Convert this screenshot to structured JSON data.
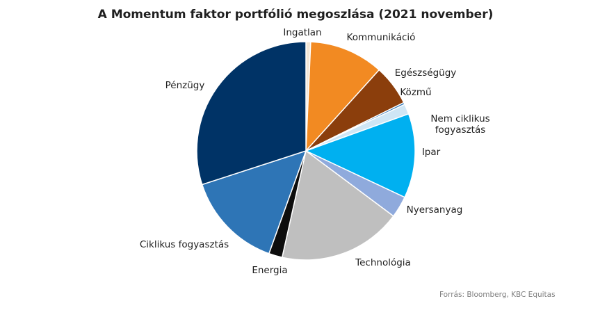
{
  "chart_data": {
    "type": "pie",
    "title": "A Momentum faktor portfólió megoszlása (2021 november)",
    "start_angle_deg": 0,
    "direction": "clockwise",
    "slices": [
      {
        "label": [
          "Ingatlan"
        ],
        "value": 0.7,
        "color": "#f2e6d6"
      },
      {
        "label": [
          "Kommunikáció"
        ],
        "value": 11.0,
        "color": "#f28a22"
      },
      {
        "label": [
          "Egészségügy"
        ],
        "value": 6.0,
        "color": "#8b3e0c"
      },
      {
        "label": [
          "Közmű"
        ],
        "value": 0.3,
        "color": "#2e75b6"
      },
      {
        "label": [
          "Nem ciklikus",
          "fogyasztás"
        ],
        "value": 1.5,
        "color": "#cfe6f5"
      },
      {
        "label": [
          "Ipar"
        ],
        "value": 12.5,
        "color": "#00b0f0"
      },
      {
        "label": [
          "Nyersanyag"
        ],
        "value": 3.2,
        "color": "#8faadc"
      },
      {
        "label": [
          "Technológia"
        ],
        "value": 18.3,
        "color": "#bfbfbf"
      },
      {
        "label": [
          "Energia"
        ],
        "value": 2.0,
        "color": "#0d0d0d"
      },
      {
        "label": [
          "Ciklikus fogyasztás"
        ],
        "value": 14.5,
        "color": "#2e75b6"
      },
      {
        "label": [
          "Pénzügy"
        ],
        "value": 30.0,
        "color": "#003366"
      }
    ]
  },
  "source": "Forrás: Bloomberg, KBC Equitas"
}
